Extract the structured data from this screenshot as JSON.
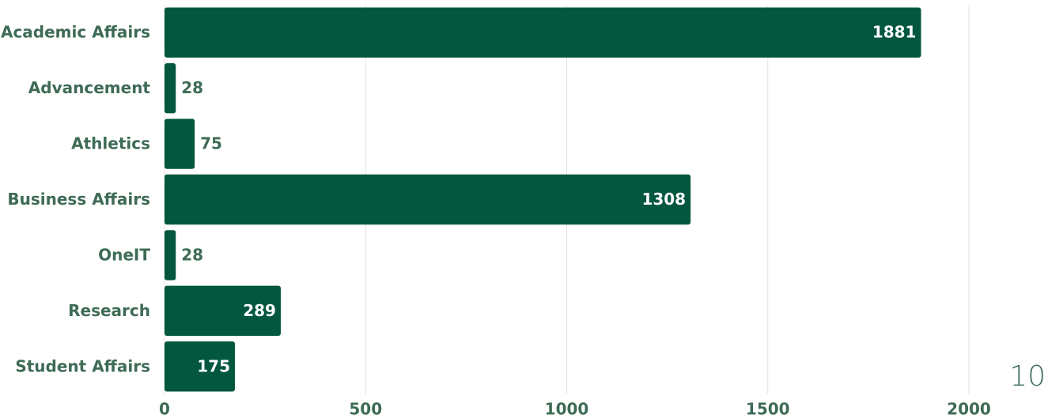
{
  "chart_data": {
    "type": "bar",
    "orientation": "horizontal",
    "categories": [
      "Academic Affairs",
      "Advancement",
      "Athletics",
      "Business Affairs",
      "OneIT",
      "Research",
      "Student Affairs"
    ],
    "values": [
      1881,
      28,
      75,
      1308,
      28,
      289,
      175
    ],
    "color": "#03573f",
    "xlim": [
      0,
      2000
    ],
    "xticks": [
      0,
      500,
      1000,
      1500,
      2000
    ],
    "grid": true
  },
  "page_number": "10"
}
